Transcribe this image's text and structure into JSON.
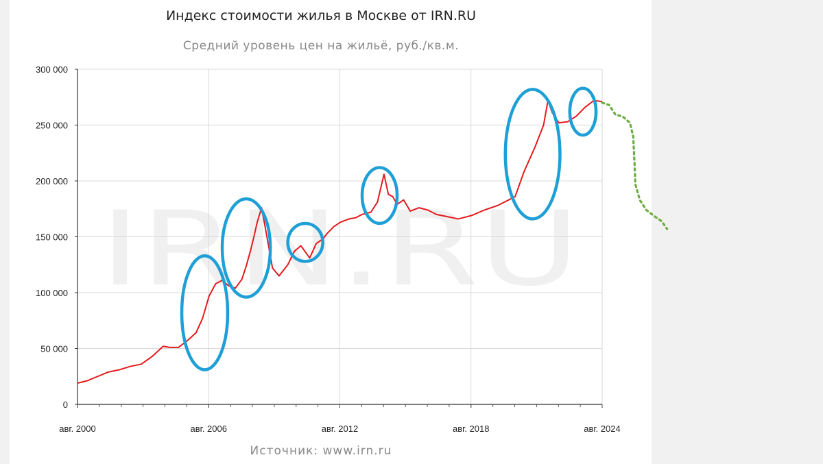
{
  "colors": {
    "line": "#e41a1c",
    "highlight": "#1e9fd6",
    "forecast": "#6aad3d",
    "grid": "#d9d9d9"
  },
  "chart_data": {
    "type": "line",
    "title": "Индекс стоимости жилья в Москве от IRN.RU",
    "subtitle": "Средний уровень цен на жильё, руб./кв.м.",
    "source": "Источник: www.irn.ru",
    "watermark": "IRN.RU",
    "xlim": [
      2000.58,
      2024.58
    ],
    "ylim": [
      0,
      300000
    ],
    "grid": true,
    "x_ticks": [
      {
        "x": 2000.58,
        "label": "авг. 2000"
      },
      {
        "x": 2006.58,
        "label": "авг. 2006"
      },
      {
        "x": 2012.58,
        "label": "авг. 2012"
      },
      {
        "x": 2018.58,
        "label": "авг. 2018"
      },
      {
        "x": 2024.58,
        "label": "авг. 2024"
      }
    ],
    "y_ticks": [
      {
        "y": 0,
        "label": "0"
      },
      {
        "y": 50000,
        "label": "50 000"
      },
      {
        "y": 100000,
        "label": "100 000"
      },
      {
        "y": 150000,
        "label": "150 000"
      },
      {
        "y": 200000,
        "label": "200 000"
      },
      {
        "y": 250000,
        "label": "250 000"
      },
      {
        "y": 300000,
        "label": "300 000"
      }
    ],
    "series": [
      {
        "x": [
          2000.58,
          2001.0,
          2001.5,
          2002.0,
          2002.5,
          2003.0,
          2003.5,
          2004.0,
          2004.5,
          2004.8,
          2005.2,
          2005.6,
          2006.0,
          2006.3,
          2006.6,
          2006.9,
          2007.2,
          2007.5,
          2007.8,
          2008.1,
          2008.3,
          2008.5,
          2008.65,
          2008.8,
          2009.0,
          2009.2,
          2009.5,
          2009.8,
          2010.2,
          2010.5,
          2010.8,
          2011.2,
          2011.5,
          2011.8,
          2012.0,
          2012.3,
          2012.6,
          2013.0,
          2013.3,
          2013.6,
          2014.0,
          2014.3,
          2014.6,
          2014.8,
          2015.0,
          2015.2,
          2015.5,
          2015.8,
          2016.2,
          2016.6,
          2017.0,
          2017.5,
          2018.0,
          2018.6,
          2019.2,
          2019.8,
          2020.3,
          2020.6,
          2021.0,
          2021.5,
          2021.9,
          2022.1,
          2022.3,
          2022.6,
          2023.0,
          2023.4,
          2023.8,
          2024.2,
          2024.58
        ],
        "y": [
          19000,
          21000,
          25000,
          29000,
          31000,
          34000,
          36000,
          43000,
          52000,
          51000,
          51000,
          57000,
          64000,
          77000,
          97000,
          108000,
          111000,
          106000,
          104000,
          112000,
          124000,
          138000,
          150000,
          163000,
          176000,
          155000,
          122000,
          115000,
          125000,
          137000,
          142000,
          131000,
          144000,
          148000,
          153000,
          159000,
          163000,
          166000,
          167000,
          170000,
          172000,
          181000,
          206000,
          188000,
          186000,
          179000,
          183000,
          173000,
          176000,
          174000,
          170000,
          168000,
          166000,
          169000,
          174000,
          178000,
          183000,
          186000,
          208000,
          230000,
          250000,
          272000,
          261000,
          252000,
          253000,
          258000,
          266000,
          272000,
          271000
        ]
      }
    ],
    "annotations": {
      "highlight_ellipses": [
        {
          "x": 2006.4,
          "y": 82000,
          "rx": 1.05,
          "ry": 51000
        },
        {
          "x": 2008.3,
          "y": 140000,
          "rx": 1.1,
          "ry": 44000
        },
        {
          "x": 2011.0,
          "y": 145000,
          "rx": 0.8,
          "ry": 17000
        },
        {
          "x": 2014.4,
          "y": 187000,
          "rx": 0.8,
          "ry": 25000
        },
        {
          "x": 2021.4,
          "y": 224000,
          "rx": 1.25,
          "ry": 58000
        },
        {
          "x": 2023.7,
          "y": 262000,
          "rx": 0.6,
          "ry": 21000
        }
      ],
      "forecast_dotted": {
        "x": [
          2024.58,
          2024.9,
          2025.2,
          2025.5,
          2025.85,
          2026.0,
          2026.05,
          2026.1,
          2026.3,
          2026.6,
          2027.0,
          2027.3,
          2027.55
        ],
        "y": [
          270000,
          268000,
          259000,
          258000,
          252000,
          240000,
          220000,
          197000,
          183000,
          174000,
          168000,
          164000,
          157000
        ]
      }
    }
  }
}
